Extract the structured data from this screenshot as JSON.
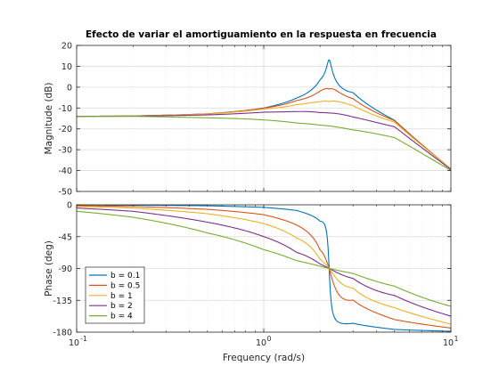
{
  "chart_data": [
    {
      "type": "line",
      "panel": "magnitude",
      "title": "Efecto de variar el amortiguamiento en la respuesta en frecuencia",
      "xlabel": "",
      "ylabel": "Magnitude (dB)",
      "xscale": "log",
      "xlim": [
        0.1,
        10
      ],
      "ylim": [
        -50,
        20
      ],
      "yticks": [
        20,
        10,
        0,
        -10,
        -20,
        -30,
        -40,
        -50
      ],
      "grid": true,
      "x": [
        0.1,
        0.2,
        0.5,
        1.0,
        1.5,
        2.0,
        2.236,
        3.0,
        5.0,
        10.0
      ],
      "series": [
        {
          "name": "b = 0.1",
          "color": "#0072BD",
          "values": [
            -14.0,
            -13.8,
            -12.8,
            -10.0,
            -5.2,
            3.6,
            13.0,
            -2.6,
            -15.9,
            -39.3
          ]
        },
        {
          "name": "b = 0.5",
          "color": "#D95319",
          "values": [
            -14.0,
            -13.8,
            -12.8,
            -10.1,
            -6.4,
            -1.9,
            -0.9,
            -5.5,
            -16.1,
            -39.3
          ]
        },
        {
          "name": "b = 1",
          "color": "#EDB120",
          "values": [
            -14.0,
            -13.8,
            -12.9,
            -10.5,
            -8.4,
            -7.0,
            -6.9,
            -8.9,
            -16.8,
            -39.3
          ]
        },
        {
          "name": "b = 2",
          "color": "#7E2F8E",
          "values": [
            -14.0,
            -13.9,
            -13.3,
            -12.0,
            -11.7,
            -12.2,
            -12.4,
            -14.3,
            -19.0,
            -39.5
          ]
        },
        {
          "name": "b = 4",
          "color": "#77AC30",
          "values": [
            -14.0,
            -14.0,
            -14.7,
            -15.7,
            -17.2,
            -18.2,
            -18.6,
            -20.5,
            -24.2,
            -40.0
          ]
        }
      ]
    },
    {
      "type": "line",
      "panel": "phase",
      "title": "",
      "xlabel": "Frequency  (rad/s)",
      "ylabel": "Phase (deg)",
      "xscale": "log",
      "xlim": [
        0.1,
        10
      ],
      "ylim": [
        -180,
        0
      ],
      "yticks": [
        0,
        -45,
        -90,
        -135,
        -180
      ],
      "xticks": [
        {
          "label": "10",
          "exp": "-1"
        },
        {
          "label": "10",
          "exp": "0"
        },
        {
          "label": "10",
          "exp": "1"
        }
      ],
      "grid": true,
      "legend": "bottom-left",
      "x": [
        0.1,
        0.2,
        0.5,
        1.0,
        1.5,
        2.0,
        2.236,
        3.0,
        5.0,
        10.0
      ],
      "series": [
        {
          "name": "b = 0.1",
          "color": "#0072BD",
          "values": [
            -0.2,
            -0.5,
            -1.4,
            -3.6,
            -8.0,
            -23.3,
            -90.0,
            -167.5,
            -176.2,
            -178.8
          ]
        },
        {
          "name": "b = 0.5",
          "color": "#D95319",
          "values": [
            -1.2,
            -2.4,
            -6.4,
            -14.0,
            -28.6,
            -64.0,
            -90.0,
            -134.6,
            -162.2,
            -174.2
          ]
        },
        {
          "name": "b = 1",
          "color": "#EDB120",
          "values": [
            -2.3,
            -4.6,
            -12.6,
            -26.6,
            -47.0,
            -77.0,
            -90.0,
            -117.6,
            -145.4,
            -168.7
          ]
        },
        {
          "name": "b = 2",
          "color": "#7E2F8E",
          "values": [
            -4.6,
            -9.2,
            -24.6,
            -45.0,
            -67.4,
            -83.6,
            -90.0,
            -104.0,
            -128.2,
            -157.4
          ]
        },
        {
          "name": "b = 4",
          "color": "#77AC30",
          "values": [
            -9.2,
            -17.6,
            -39.8,
            -63.4,
            -79.0,
            -86.8,
            -90.0,
            -97.0,
            -115.0,
            -143.5
          ]
        }
      ]
    }
  ]
}
